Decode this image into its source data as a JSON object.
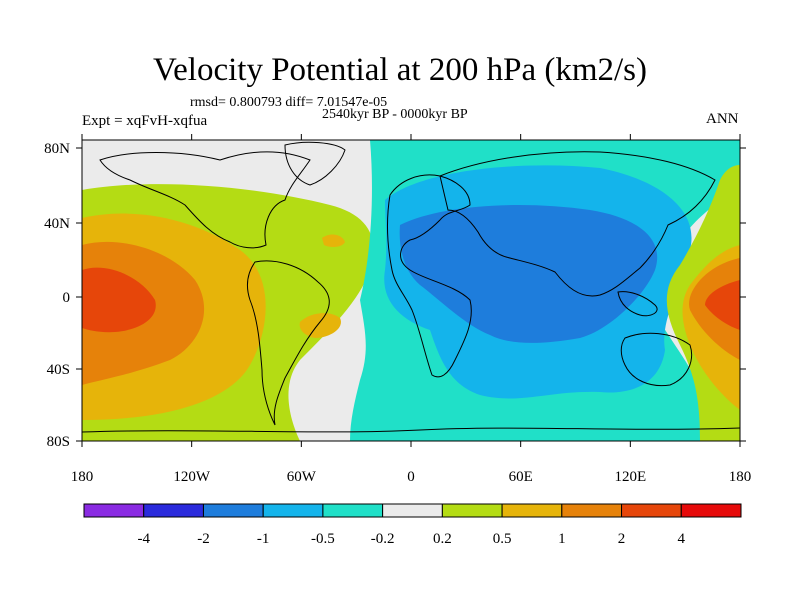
{
  "title": "Velocity Potential at 200 hPa (km2/s)",
  "stats": "rmsd= 0.800793 diff= 7.01547e-05",
  "experiment": "Expt = xqFvH-xqfua",
  "period": "2540kyr BP - 0000kyr BP",
  "season": "ANN",
  "map": {
    "lat_ticks": [
      "80N",
      "40N",
      "0",
      "40S",
      "80S"
    ],
    "lon_ticks": [
      "180",
      "120W",
      "60W",
      "0",
      "60E",
      "120E",
      "180"
    ]
  },
  "colorbar": {
    "colors": [
      "#8a2be2",
      "#2b2bdc",
      "#1e7ddc",
      "#14b4eb",
      "#20e0c8",
      "#ebebeb",
      "#b4dc14",
      "#e6b40a",
      "#e6820a",
      "#e6460a",
      "#e60a0a"
    ],
    "labels": [
      "-4",
      "-2",
      "-1",
      "-0.5",
      "-0.2",
      "0.2",
      "0.5",
      "1",
      "2",
      "4"
    ]
  },
  "field_colors": {
    "land_outline": "#000000",
    "background": "#ebebeb",
    "pos_light": "#b4dc14",
    "pos_mid": "#e6b40a",
    "pos_strong": "#e6820a",
    "pos_max": "#e6460a",
    "neg_light": "#20e0c8",
    "neg_mid": "#14b4eb",
    "neg_strong": "#1e7ddc"
  }
}
